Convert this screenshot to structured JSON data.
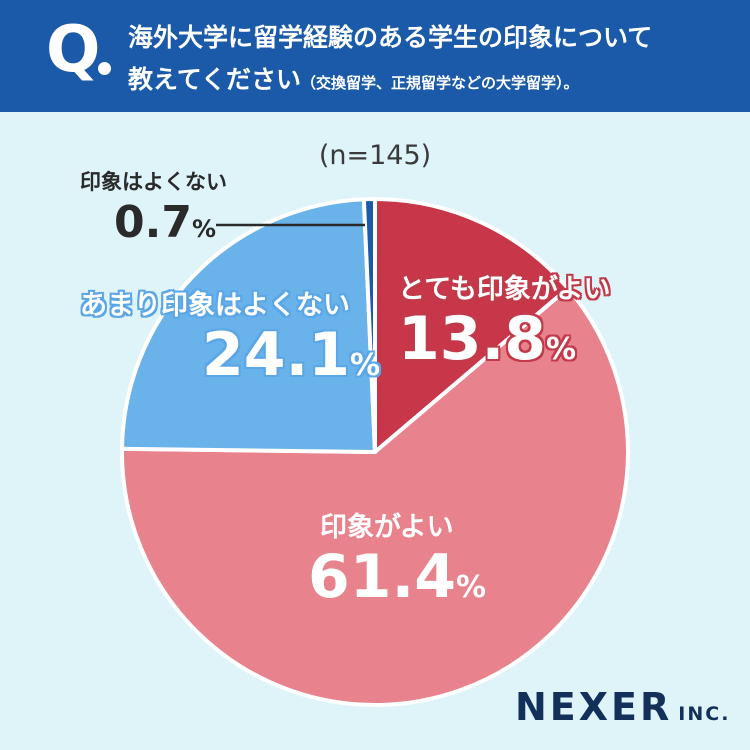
{
  "question": {
    "mark": "Q",
    "line1": "海外大学に留学経験のある学生の印象について",
    "line2": "教えてください",
    "line2_note": "（交換留学、正規留学などの大学留学）。"
  },
  "sample_size": "(n=145)",
  "logo": {
    "main": "NEXER",
    "sub": "INC."
  },
  "colors": {
    "header_bg": "#1a5aa8",
    "page_bg": "#def4f9",
    "very_good": "#c8364a",
    "good": "#e8828c",
    "not_very_good": "#6ab2ea",
    "not_good": "#1a5aa8"
  },
  "chart_data": {
    "type": "pie",
    "title": "",
    "start": "12 o'clock",
    "direction": "clockwise",
    "slices": [
      {
        "name": "とても印象がよい",
        "value": 13.8,
        "label": "13.8",
        "unit": "%",
        "color": "#c8364a"
      },
      {
        "name": "印象がよい",
        "value": 61.4,
        "label": "61.4",
        "unit": "%",
        "color": "#e8828c"
      },
      {
        "name": "あまり印象はよくない",
        "value": 24.1,
        "label": "24.1",
        "unit": "%",
        "color": "#6ab2ea"
      },
      {
        "name": "印象はよくない",
        "value": 0.7,
        "label": "0.7",
        "unit": "%",
        "color": "#1a5aa8"
      }
    ]
  }
}
